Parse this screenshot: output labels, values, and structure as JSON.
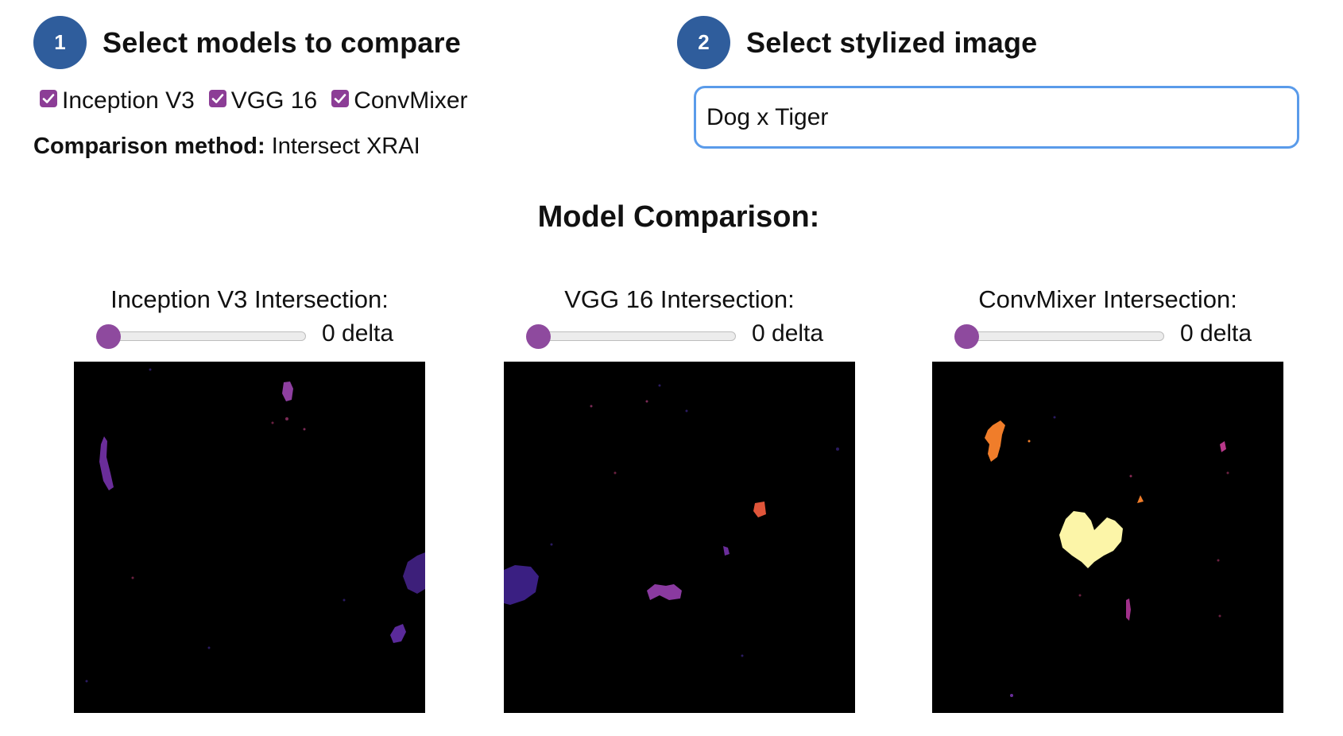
{
  "step1": {
    "number": "1",
    "title": "Select models to compare"
  },
  "step2": {
    "number": "2",
    "title": "Select stylized image"
  },
  "models": [
    {
      "label": "Inception V3",
      "checked": true
    },
    {
      "label": "VGG 16",
      "checked": true
    },
    {
      "label": "ConvMixer",
      "checked": true
    }
  ],
  "comparison": {
    "label": "Comparison method:",
    "value": "Intersect XRAI"
  },
  "image_select": {
    "value": "Dog x Tiger"
  },
  "section_title": "Model Comparison:",
  "panels": [
    {
      "title": "Inception V3 Intersection:",
      "slider_value": 0,
      "delta_text": "0 delta"
    },
    {
      "title": "VGG 16 Intersection:",
      "slider_value": 0,
      "delta_text": "0 delta"
    },
    {
      "title": "ConvMixer Intersection:",
      "slider_value": 0,
      "delta_text": "0 delta"
    }
  ],
  "colors": {
    "step_badge": "#2f5d9c",
    "checkbox": "#8c3d96",
    "slider_thumb": "#8e4a9e",
    "select_border": "#5a9bea",
    "map_background": "#000000"
  }
}
